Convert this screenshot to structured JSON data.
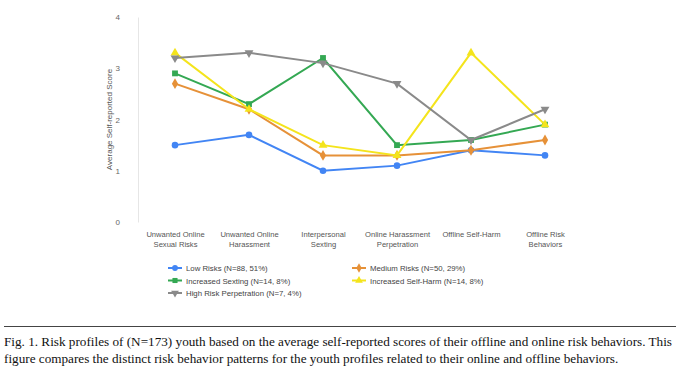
{
  "chart_data": {
    "type": "line",
    "y_label": "Average Self-reported Score",
    "caption": "Fig. 1. Risk profiles of (N=173) youth based on the average self-reported scores of their offline and online risk behaviors. This figure compares the distinct risk behavior patterns for the youth profiles related to their online and offline behaviors.",
    "categories": [
      "Unwanted Online Sexual Risks",
      "Unwanted Online Harassment",
      "Interpersonal Sexting",
      "Online Harassment Perpetration",
      "Offline Self-Harm",
      "Offline Risk Behaviors"
    ],
    "series": [
      {
        "name": "Low Risks (N=88, 51%)",
        "color": "#4285f4",
        "marker": "circle",
        "values": [
          1.5,
          1.7,
          1.0,
          1.1,
          1.4,
          1.3
        ]
      },
      {
        "name": "Medium Risks (N=50, 29%)",
        "color": "#e69138",
        "marker": "diamond",
        "values": [
          2.7,
          2.2,
          1.3,
          1.3,
          1.4,
          1.6
        ]
      },
      {
        "name": "Increased Sexting (N=14, 8%)",
        "color": "#34a853",
        "marker": "square",
        "values": [
          2.9,
          2.3,
          3.2,
          1.5,
          1.6,
          1.9
        ]
      },
      {
        "name": "Increased Self-Harm (N=14, 8%)",
        "color": "#f4e41c",
        "marker": "triangle",
        "values": [
          3.3,
          2.2,
          1.5,
          1.3,
          3.3,
          1.9
        ]
      },
      {
        "name": "High Risk Perpetration (N=7, 4%)",
        "color": "#8a8a8a",
        "marker": "triangle-down",
        "values": [
          3.2,
          3.3,
          3.1,
          2.7,
          1.6,
          2.2
        ]
      }
    ],
    "ylim": [
      0,
      4
    ],
    "yticks": [
      0,
      1,
      2,
      3,
      4
    ],
    "grid": false,
    "legend": "bottom"
  }
}
